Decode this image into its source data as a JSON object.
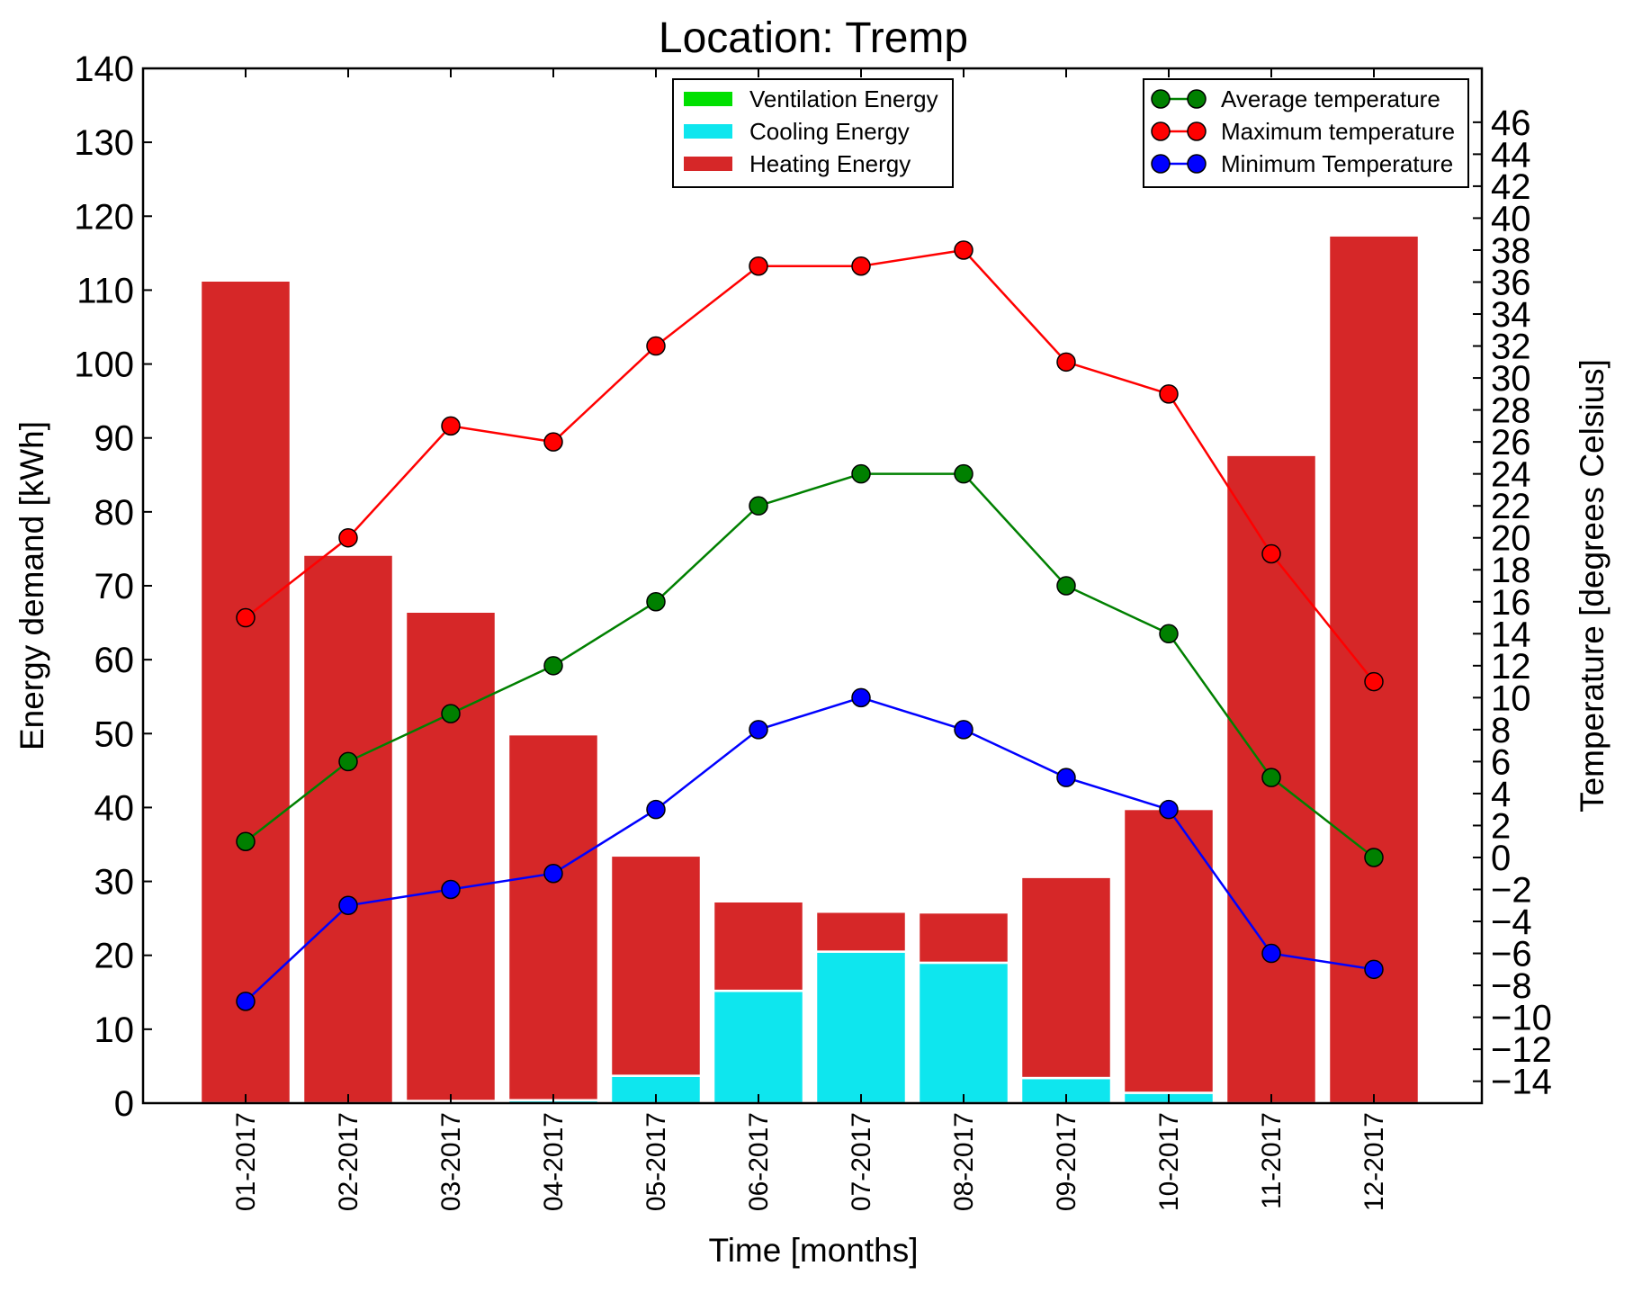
{
  "chart_data": {
    "type": "bar",
    "title": "Location: Tremp",
    "xlabel": "Time [months]",
    "ylabel": "Energy demand [kWh]",
    "y2label": "Temperature [degrees Celsius]",
    "ylim": [
      0,
      140
    ],
    "y2lim": [
      -15.37,
      49.37
    ],
    "yticks": [
      0,
      10,
      20,
      30,
      40,
      50,
      60,
      70,
      80,
      90,
      100,
      110,
      120,
      130,
      140
    ],
    "y2ticks": [
      -14,
      -12,
      -10,
      -8,
      -6,
      -4,
      -2,
      0,
      2,
      4,
      6,
      8,
      10,
      12,
      14,
      16,
      18,
      20,
      22,
      24,
      26,
      28,
      30,
      32,
      34,
      36,
      38,
      40,
      42,
      44,
      46
    ],
    "categories": [
      "01-2017",
      "02-2017",
      "03-2017",
      "04-2017",
      "05-2017",
      "06-2017",
      "07-2017",
      "08-2017",
      "09-2017",
      "10-2017",
      "11-2017",
      "12-2017"
    ],
    "bar_series": [
      {
        "name": "Ventilation Energy",
        "color": "#00e000",
        "values": [
          0,
          0,
          0,
          0,
          0,
          0,
          0,
          0,
          0,
          0,
          0,
          0
        ]
      },
      {
        "name": "Cooling Energy",
        "color": "#0ee6ee",
        "values": [
          0,
          0,
          0.3,
          0.4,
          3.7,
          15.2,
          20.5,
          19.0,
          3.4,
          1.4,
          0,
          0
        ]
      },
      {
        "name": "Heating Energy",
        "color": "#d62728",
        "values": [
          111.3,
          74.2,
          66.2,
          49.5,
          29.8,
          12.1,
          5.4,
          6.8,
          27.2,
          38.4,
          87.7,
          117.4
        ]
      }
    ],
    "line_series": [
      {
        "name": "Average temperature",
        "color": "#008000",
        "values": [
          1.0,
          6.0,
          9.0,
          12.0,
          16.0,
          22.0,
          24.0,
          24.0,
          17.0,
          14.0,
          5.0,
          0.0
        ]
      },
      {
        "name": "Maximum temperature",
        "color": "#ff0000",
        "values": [
          15.0,
          20.0,
          27.0,
          26.0,
          32.0,
          37.0,
          37.0,
          38.0,
          31.0,
          29.0,
          19.0,
          11.0
        ]
      },
      {
        "name": "Minimum Temperature",
        "color": "#0000ff",
        "values": [
          -9.0,
          -3.0,
          -2.0,
          -1.0,
          3.0,
          8.0,
          10.0,
          8.0,
          5.0,
          3.0,
          -6.0,
          -7.0
        ]
      }
    ],
    "grid": false,
    "bar_legend_position": "top-center",
    "line_legend_position": "top-right"
  }
}
